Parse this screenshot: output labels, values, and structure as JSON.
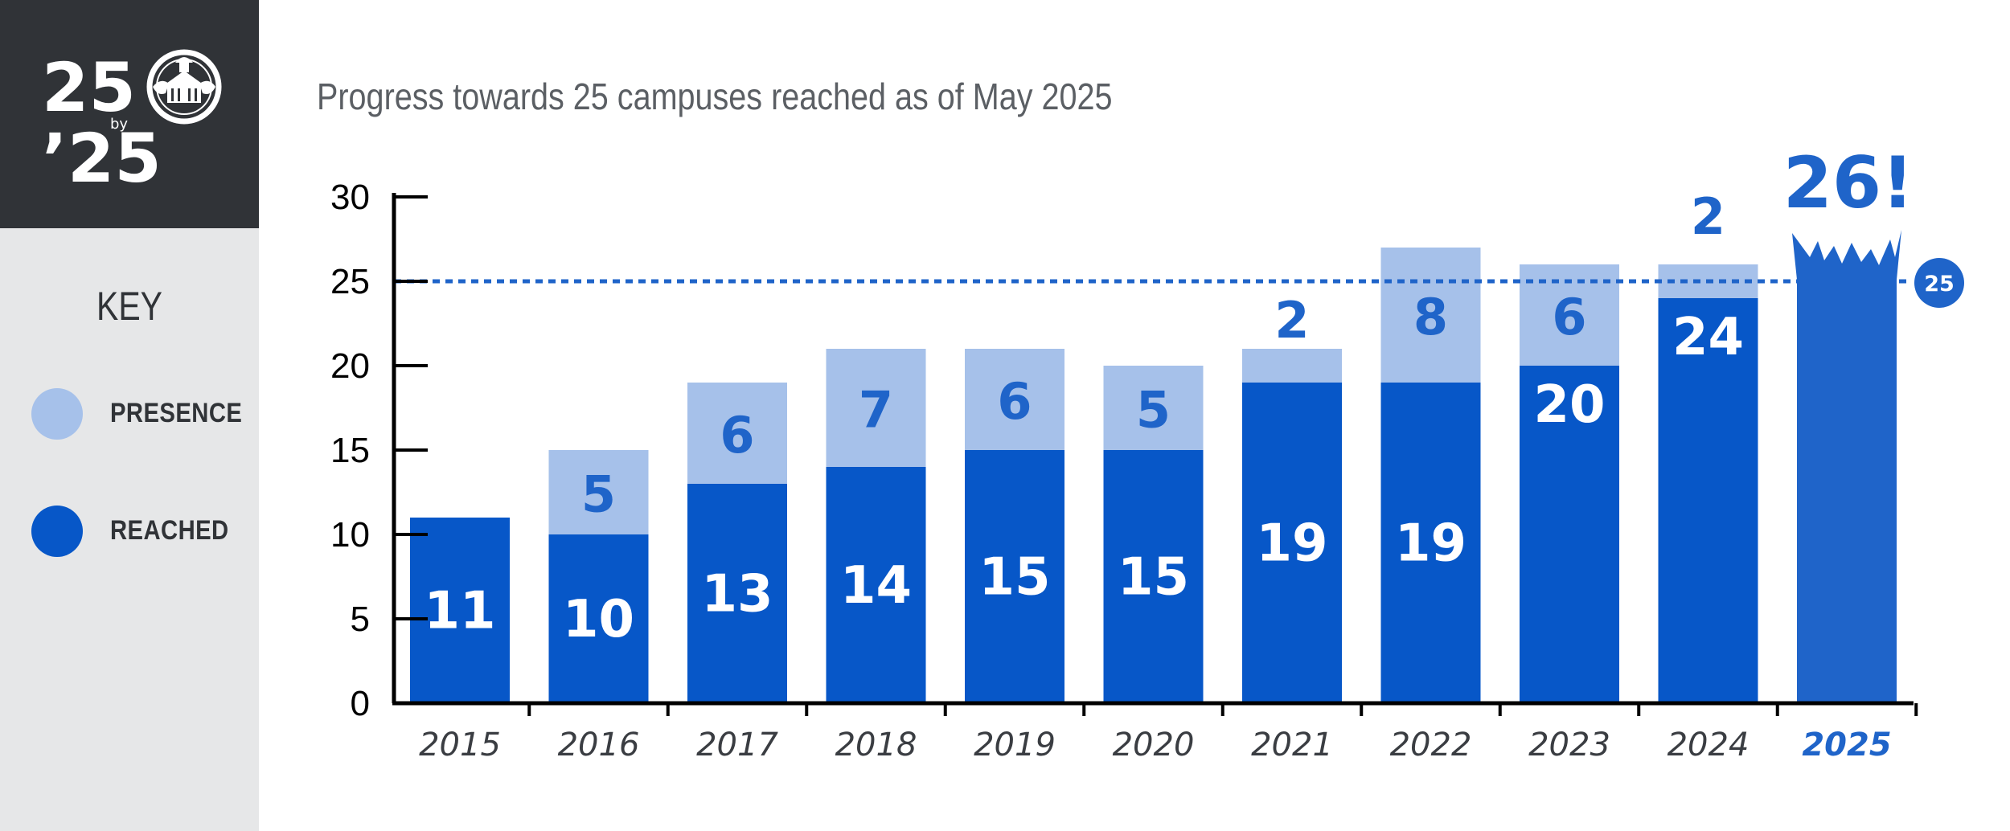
{
  "logo": {
    "line1": "25",
    "by": "by",
    "line2": "’25"
  },
  "key": {
    "title": "KEY",
    "items": [
      {
        "label": "PRESENCE",
        "color": "#a6c1ea"
      },
      {
        "label": "REACHED",
        "color": "#0757c8"
      }
    ]
  },
  "chart_data": {
    "type": "bar",
    "title": "Progress towards 25 campuses reached as of May 2025",
    "categories": [
      "2015",
      "2016",
      "2017",
      "2018",
      "2019",
      "2020",
      "2021",
      "2022",
      "2023",
      "2024",
      "2025"
    ],
    "series": [
      {
        "name": "REACHED",
        "color": "#0757c8",
        "values": [
          11,
          10,
          13,
          14,
          15,
          15,
          19,
          19,
          20,
          24,
          26
        ]
      },
      {
        "name": "PRESENCE",
        "color": "#a6c1ea",
        "values": [
          0,
          5,
          6,
          7,
          6,
          5,
          2,
          8,
          6,
          2,
          0
        ]
      }
    ],
    "reached_labels": [
      "11",
      "10",
      "13",
      "14",
      "15",
      "15",
      "19",
      "19",
      "20",
      "24",
      ""
    ],
    "presence_labels": [
      "",
      "5",
      "6",
      "7",
      "6",
      "5",
      "2",
      "8",
      "6",
      "2",
      ""
    ],
    "highlight_label": "26!",
    "highlight_category": "2025",
    "target": {
      "value": 25,
      "label": "25"
    },
    "ylim": [
      0,
      30
    ],
    "yticks": [
      0,
      5,
      10,
      15,
      20,
      25,
      30
    ],
    "xlabel": "",
    "ylabel": "",
    "stacked": true,
    "legend": "left",
    "grid": false,
    "colors": {
      "reached": "#0757c8",
      "presence": "#a6c1ea",
      "highlight": "#1f64c9",
      "axis": "#000000",
      "category_text": "#3a3d42"
    }
  }
}
